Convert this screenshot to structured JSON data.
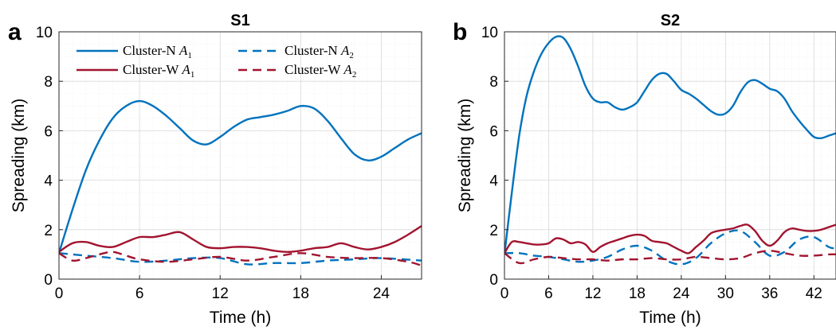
{
  "chart_data": [
    {
      "type": "line",
      "panel_label": "a",
      "title": "S1",
      "xlabel": "Time (h)",
      "ylabel": "Spreading (km)",
      "xlim": [
        0,
        27
      ],
      "ylim": [
        0,
        10
      ],
      "xticks": [
        0,
        6,
        12,
        18,
        24
      ],
      "yticks": [
        0,
        2,
        4,
        6,
        8,
        10
      ],
      "grid": true,
      "legend": "top-left",
      "series": [
        {
          "name": "Cluster-N",
          "sub": "1",
          "color": "#0072BD",
          "style": "solid",
          "x": [
            0,
            1,
            2,
            3,
            4,
            5,
            6,
            7,
            8,
            9,
            10,
            11,
            12,
            13,
            14,
            15,
            16,
            17,
            18,
            19,
            20,
            21,
            22,
            23,
            24,
            25,
            26,
            27
          ],
          "y": [
            1.05,
            2.8,
            4.4,
            5.6,
            6.5,
            7.0,
            7.2,
            7.0,
            6.6,
            6.1,
            5.6,
            5.45,
            5.75,
            6.15,
            6.45,
            6.55,
            6.65,
            6.8,
            7.0,
            6.9,
            6.4,
            5.7,
            5.05,
            4.8,
            4.95,
            5.3,
            5.65,
            5.9
          ]
        },
        {
          "name": "Cluster-N",
          "sub": "2",
          "color": "#0072BD",
          "style": "dashed",
          "x": [
            0,
            2,
            4,
            6,
            8,
            10,
            12,
            14,
            16,
            18,
            20,
            22,
            24,
            27
          ],
          "y": [
            1.05,
            0.95,
            0.85,
            0.7,
            0.75,
            0.85,
            0.85,
            0.6,
            0.65,
            0.65,
            0.75,
            0.8,
            0.85,
            0.75
          ]
        },
        {
          "name": "Cluster-W",
          "sub": "1",
          "color": "#A2142F",
          "style": "solid",
          "x": [
            0,
            1,
            2,
            3,
            4,
            5,
            6,
            7,
            8,
            9,
            10,
            11,
            12,
            13,
            14,
            15,
            16,
            17,
            18,
            19,
            20,
            21,
            22,
            23,
            24,
            25,
            26,
            27
          ],
          "y": [
            1.1,
            1.45,
            1.5,
            1.35,
            1.3,
            1.5,
            1.7,
            1.7,
            1.8,
            1.9,
            1.6,
            1.3,
            1.25,
            1.3,
            1.3,
            1.25,
            1.15,
            1.1,
            1.15,
            1.25,
            1.3,
            1.45,
            1.3,
            1.2,
            1.3,
            1.5,
            1.8,
            2.15
          ]
        },
        {
          "name": "Cluster-W",
          "sub": "2",
          "color": "#A2142F",
          "style": "dashed",
          "x": [
            0,
            1,
            2,
            3,
            4,
            5,
            6,
            8,
            10,
            12,
            14,
            16,
            18,
            20,
            22,
            24,
            26,
            27
          ],
          "y": [
            1.05,
            0.75,
            0.85,
            1.0,
            1.1,
            0.95,
            0.8,
            0.7,
            0.8,
            0.9,
            0.75,
            0.9,
            1.05,
            0.9,
            0.85,
            0.85,
            0.7,
            0.55
          ]
        }
      ]
    },
    {
      "type": "line",
      "panel_label": "b",
      "title": "S2",
      "xlabel": "Time (h)",
      "ylabel": "Spreading (km)",
      "xlim": [
        0,
        45
      ],
      "ylim": [
        0,
        10
      ],
      "xticks": [
        0,
        6,
        12,
        18,
        24,
        30,
        36,
        42
      ],
      "yticks": [
        0,
        2,
        4,
        6,
        8,
        10
      ],
      "grid": true,
      "series": [
        {
          "name": "Cluster-N",
          "sub": "1",
          "color": "#0072BD",
          "style": "solid",
          "x": [
            0,
            1,
            2,
            3,
            4,
            5,
            6,
            7,
            8,
            9,
            10,
            11,
            12,
            13,
            14,
            15,
            16,
            17,
            18,
            19,
            20,
            21,
            22,
            23,
            24,
            25,
            26,
            27,
            28,
            29,
            30,
            31,
            32,
            33,
            34,
            35,
            36,
            37,
            38,
            39,
            40,
            41,
            42,
            43,
            44,
            45
          ],
          "y": [
            1.0,
            3.5,
            5.8,
            7.4,
            8.4,
            9.1,
            9.55,
            9.8,
            9.75,
            9.3,
            8.6,
            7.8,
            7.3,
            7.15,
            7.15,
            6.95,
            6.85,
            6.95,
            7.15,
            7.6,
            8.05,
            8.3,
            8.3,
            8.0,
            7.65,
            7.5,
            7.3,
            7.05,
            6.8,
            6.65,
            6.7,
            7.0,
            7.55,
            7.95,
            8.05,
            7.9,
            7.7,
            7.6,
            7.3,
            6.8,
            6.4,
            6.05,
            5.75,
            5.7,
            5.8,
            5.9
          ]
        },
        {
          "name": "Cluster-N",
          "sub": "2",
          "color": "#0072BD",
          "style": "dashed",
          "x": [
            0,
            2,
            4,
            6,
            8,
            10,
            12,
            14,
            16,
            18,
            20,
            22,
            24,
            26,
            28,
            30,
            32,
            34,
            36,
            38,
            40,
            42,
            44,
            45
          ],
          "y": [
            1.05,
            1.05,
            0.95,
            0.9,
            0.8,
            0.7,
            0.75,
            0.9,
            1.2,
            1.35,
            1.15,
            0.75,
            0.6,
            0.85,
            1.45,
            1.85,
            1.95,
            1.5,
            0.95,
            1.1,
            1.6,
            1.7,
            1.3,
            1.25
          ]
        },
        {
          "name": "Cluster-W",
          "sub": "1",
          "color": "#A2142F",
          "style": "solid",
          "x": [
            0,
            1,
            2,
            3,
            4,
            5,
            6,
            7,
            8,
            9,
            10,
            11,
            12,
            13,
            14,
            15,
            16,
            17,
            18,
            19,
            20,
            21,
            22,
            23,
            24,
            25,
            26,
            27,
            28,
            29,
            30,
            31,
            32,
            33,
            34,
            35,
            36,
            37,
            38,
            39,
            40,
            41,
            42,
            43,
            44,
            45
          ],
          "y": [
            1.05,
            1.5,
            1.5,
            1.45,
            1.4,
            1.4,
            1.45,
            1.65,
            1.6,
            1.45,
            1.5,
            1.4,
            1.1,
            1.3,
            1.45,
            1.55,
            1.65,
            1.75,
            1.8,
            1.75,
            1.55,
            1.5,
            1.45,
            1.3,
            1.15,
            1.05,
            1.3,
            1.55,
            1.85,
            1.95,
            2.0,
            2.05,
            2.15,
            2.2,
            1.95,
            1.55,
            1.35,
            1.55,
            1.9,
            2.05,
            2.0,
            1.95,
            1.95,
            2.0,
            2.1,
            2.2
          ]
        },
        {
          "name": "Cluster-W",
          "sub": "2",
          "color": "#A2142F",
          "style": "dashed",
          "x": [
            0,
            2,
            4,
            6,
            8,
            10,
            12,
            14,
            16,
            18,
            20,
            22,
            24,
            26,
            28,
            30,
            32,
            34,
            36,
            38,
            40,
            42,
            44,
            45
          ],
          "y": [
            1.05,
            0.65,
            0.8,
            0.9,
            0.85,
            0.8,
            0.8,
            0.75,
            0.8,
            0.8,
            0.85,
            0.8,
            0.8,
            0.9,
            0.85,
            0.8,
            0.85,
            1.05,
            1.15,
            1.05,
            0.95,
            0.95,
            1.0,
            1.0
          ]
        }
      ]
    }
  ]
}
